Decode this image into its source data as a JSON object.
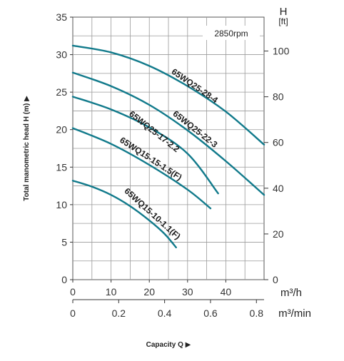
{
  "chart_data": {
    "type": "line",
    "speed_label": "2850rpm",
    "x_unit_q_m3h": "m³/h",
    "x_unit_q_m3min": "m³/min",
    "y_unit_right_letter": "H",
    "y_unit_right_bracket": "[ft]",
    "xlabel": "Capacity Q",
    "ylabel": "Total manometric head H (m)",
    "arrow_symbol": "▶",
    "xlim": [
      0,
      50
    ],
    "ylim": [
      0,
      35
    ],
    "x_ticks_m3h": [
      "0",
      "10",
      "20",
      "30",
      "40"
    ],
    "x_tick_values_m3h": [
      0,
      10,
      20,
      30,
      40
    ],
    "x_ticks_m3min": [
      "0",
      "0.2",
      "0.4",
      "0.6",
      "0.8"
    ],
    "x_tick_values_m3min": [
      0,
      0.2,
      0.4,
      0.6,
      0.8
    ],
    "y_ticks_m": [
      "0",
      "5",
      "10",
      "15",
      "20",
      "25",
      "30",
      "35"
    ],
    "y_tick_values_m": [
      0,
      5,
      10,
      15,
      20,
      25,
      30,
      35
    ],
    "y_ticks_ft": [
      "0",
      "20",
      "40",
      "60",
      "80",
      "100"
    ],
    "y_tick_values_ft": [
      0,
      20,
      40,
      60,
      80,
      100
    ],
    "grid": true,
    "curve_color": "#117a8b",
    "series": [
      {
        "name": "65WQ25-28-4",
        "x": [
          0,
          10,
          20,
          30,
          40,
          50
        ],
        "y": [
          31.2,
          30.3,
          28.5,
          25.8,
          22.4,
          18.0
        ]
      },
      {
        "name": "65WQ25-22-3",
        "x": [
          0,
          10,
          20,
          30,
          40,
          50
        ],
        "y": [
          27.6,
          25.8,
          23.3,
          19.9,
          15.8,
          11.3
        ]
      },
      {
        "name": "65WQ25-17-2.2",
        "x": [
          0,
          10,
          20,
          30,
          38
        ],
        "y": [
          24.4,
          22.7,
          20.3,
          16.8,
          11.5
        ]
      },
      {
        "name": "65WQ15-15-1.5(F)",
        "x": [
          0,
          10,
          20,
          30,
          36
        ],
        "y": [
          20.2,
          18.1,
          15.3,
          12.0,
          9.5
        ]
      },
      {
        "name": "65WQ15-10-1.1(F)",
        "x": [
          0,
          5,
          10,
          15,
          20,
          24,
          27
        ],
        "y": [
          13.2,
          12.4,
          11.3,
          9.8,
          7.9,
          6.1,
          4.3
        ]
      }
    ]
  }
}
